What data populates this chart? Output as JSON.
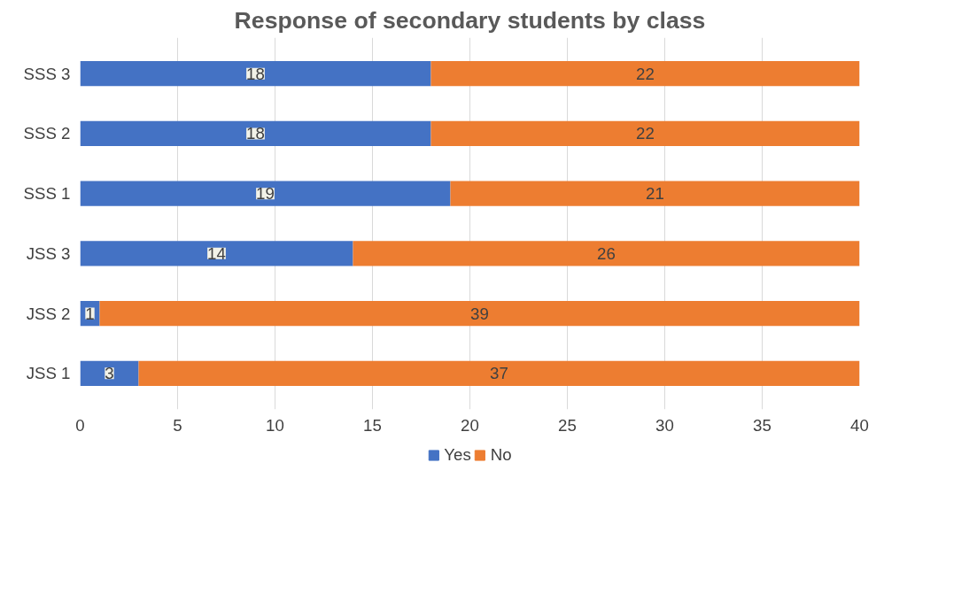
{
  "chart_data": {
    "type": "bar",
    "orientation": "horizontal",
    "stacked": true,
    "title": "Response of secondary students by class",
    "categories": [
      "SSS 3",
      "SSS 2",
      "SSS 1",
      "JSS 3",
      "JSS 2",
      "JSS 1"
    ],
    "series": [
      {
        "name": "Yes",
        "color": "#4472c4",
        "values": [
          18,
          18,
          19,
          14,
          1,
          3
        ]
      },
      {
        "name": "No",
        "color": "#ed7d31",
        "values": [
          22,
          22,
          21,
          26,
          39,
          37
        ]
      }
    ],
    "xlim": [
      0,
      40
    ],
    "xticks": [
      0,
      5,
      10,
      15,
      20,
      25,
      30,
      35,
      40
    ],
    "grid": "x",
    "legend": "bottom",
    "data_labels": true
  }
}
